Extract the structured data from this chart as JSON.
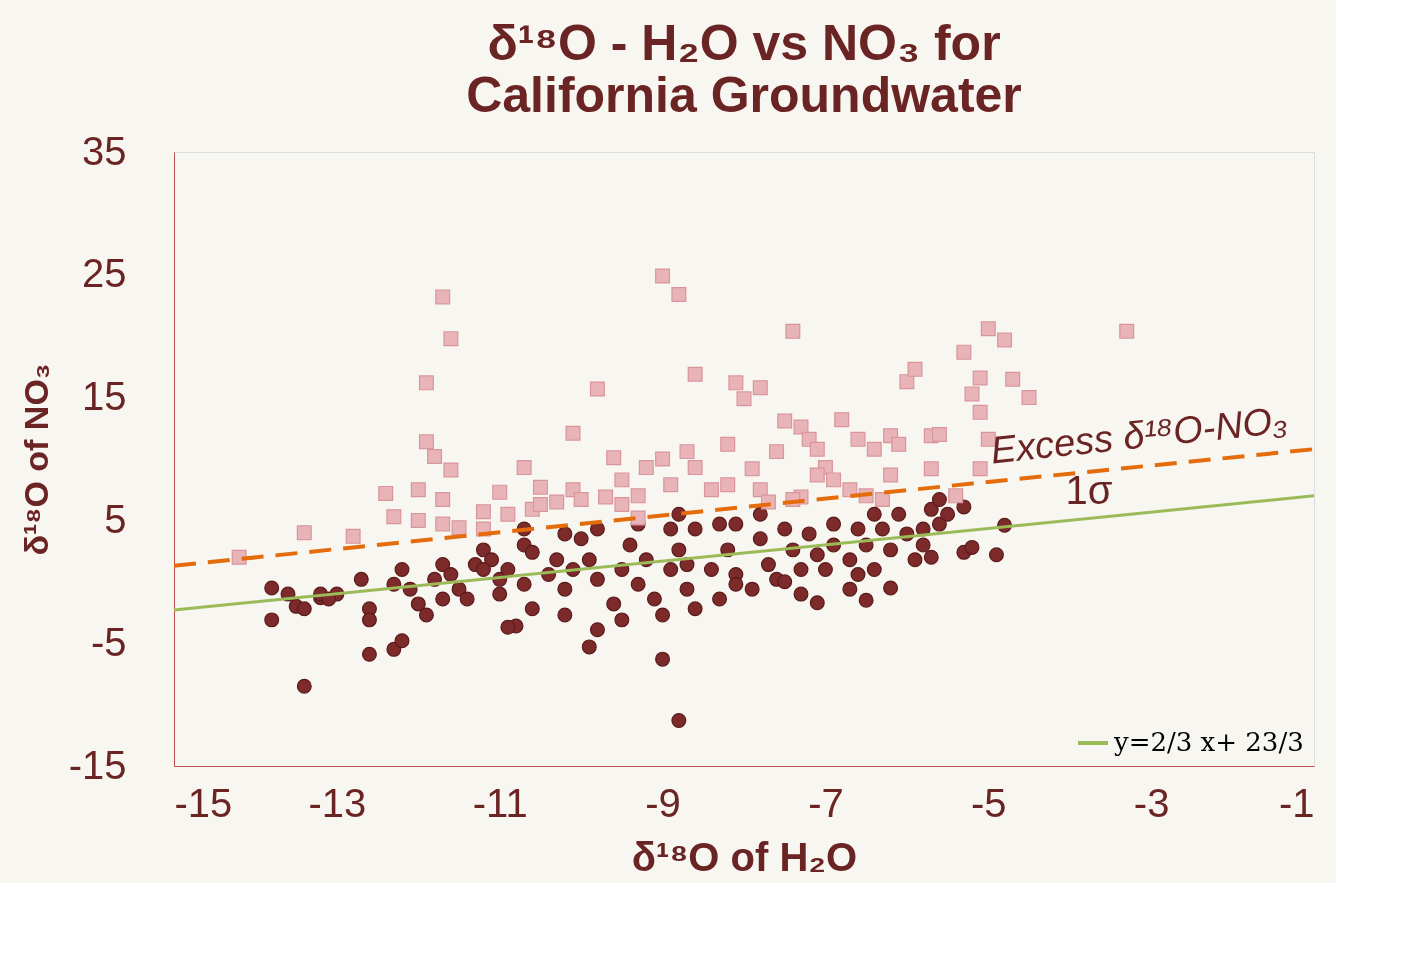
{
  "chart_data": {
    "type": "scatter",
    "title": "δ¹⁸O - H₂O vs NO₃ for California Groundwater",
    "xlabel": "δ¹⁸O of H₂O",
    "ylabel": "δ¹⁸O of NO₃",
    "xlim": [
      -15,
      -1
    ],
    "xticks": [
      -15,
      -13,
      -11,
      -9,
      -7,
      -5,
      -3,
      -1
    ],
    "ylim": [
      -15,
      35
    ],
    "yticks": [
      -15,
      -5,
      5,
      15,
      25,
      35
    ],
    "grid": false,
    "legend": "bottom right",
    "annotations": [
      "Excess δ¹⁸O-NO₃",
      "1σ"
    ],
    "series": [
      {
        "marker": "circle",
        "color": "#7d2a2a",
        "x": [
          -13.8,
          -13.8,
          -13.4,
          -12.6,
          -12.3,
          -12.2,
          -9.9,
          -9.0,
          -8.8,
          -7.1,
          -6.5,
          -6.2,
          -4.9,
          -4.8,
          -5.3,
          -5.2,
          -5.3,
          -5.7,
          -9.8,
          -10.8,
          -10.9,
          -13.5,
          -13.2,
          -13.0,
          -13.6,
          -13.4,
          -13.2,
          -13.1,
          -12.7,
          -12.6,
          -12.6,
          -12.3,
          -12.2,
          -12.1,
          -12.0,
          -11.9,
          -11.8,
          -11.7,
          -11.6,
          -11.5,
          -11.4,
          -11.3,
          -11.2,
          -11.1,
          -11.0,
          -11.0,
          -10.9,
          -10.7,
          -10.7,
          -10.6,
          -10.4,
          -10.3,
          -10.2,
          -10.2,
          -10.1,
          -10.0,
          -9.9,
          -9.8,
          -9.6,
          -9.5,
          -9.4,
          -9.3,
          -9.2,
          -9.1,
          -8.9,
          -8.9,
          -8.8,
          -8.7,
          -8.6,
          -8.4,
          -8.3,
          -8.2,
          -8.1,
          -8.1,
          -7.9,
          -7.8,
          -7.7,
          -7.6,
          -7.5,
          -7.4,
          -7.3,
          -7.2,
          -7.1,
          -7.0,
          -6.9,
          -6.9,
          -6.7,
          -6.6,
          -6.6,
          -6.5,
          -6.4,
          -6.3,
          -6.2,
          -6.1,
          -6.0,
          -5.9,
          -5.8,
          -5.7,
          -5.6,
          -5.6,
          -5.5,
          -5.8,
          -6.4,
          -6.7,
          -7.3,
          -7.8,
          -8.3,
          -8.8,
          -9.3,
          -9.8,
          -10.2,
          -10.7,
          -11.2,
          -11.7,
          -10.6,
          -9.5,
          -9.0,
          -8.6,
          -8.1,
          -7.5,
          -8.7
        ],
        "values": [
          -0.5,
          -3.1,
          -8.5,
          -5.9,
          -5.5,
          -4.8,
          -5.3,
          -6.3,
          -11.3,
          -1.7,
          -1.5,
          -0.5,
          2.2,
          4.6,
          2.4,
          2.8,
          6.1,
          2.0,
          -3.9,
          -3.6,
          -3.7,
          -2.0,
          -1.3,
          -1.0,
          -1.0,
          -2.2,
          -1.0,
          -1.4,
          0.2,
          -2.2,
          -3.1,
          -0.2,
          1.0,
          -0.6,
          -1.8,
          -2.7,
          0.2,
          1.4,
          0.6,
          -0.6,
          -1.4,
          1.4,
          2.6,
          1.8,
          0.2,
          -1.0,
          1.0,
          3.0,
          -0.2,
          -2.2,
          0.6,
          1.8,
          -0.6,
          -2.7,
          1.0,
          3.5,
          1.8,
          0.2,
          -1.8,
          1.0,
          3.0,
          -0.2,
          1.8,
          -1.4,
          4.3,
          1.0,
          2.6,
          -0.6,
          4.3,
          1.0,
          -1.4,
          2.6,
          4.7,
          0.6,
          -0.6,
          3.5,
          1.4,
          0.2,
          4.3,
          2.6,
          1.0,
          3.9,
          2.2,
          1.0,
          4.7,
          3.0,
          1.8,
          0.6,
          4.3,
          3.0,
          5.5,
          4.3,
          2.6,
          5.5,
          3.9,
          1.8,
          4.3,
          5.9,
          6.7,
          4.7,
          5.5,
          3.0,
          1.0,
          -0.6,
          -1.0,
          5.5,
          4.7,
          5.5,
          4.7,
          4.3,
          3.9,
          4.3,
          1.0,
          -1.4,
          2.4,
          -3.1,
          -2.7,
          -2.2,
          -0.2,
          0.0,
          1.4
        ]
      },
      {
        "marker": "square",
        "color": "#e9b4b8",
        "x": [
          -14.2,
          -13.4,
          -12.8,
          -12.3,
          -12.4,
          -12.0,
          -12.0,
          -11.9,
          -11.7,
          -11.6,
          -11.9,
          -11.8,
          -11.6,
          -11.7,
          -11.7,
          -11.5,
          -11.2,
          -11.0,
          -10.9,
          -10.7,
          -10.6,
          -10.5,
          -10.3,
          -10.1,
          -10.1,
          -10.0,
          -9.8,
          -9.6,
          -9.7,
          -9.5,
          -9.3,
          -9.3,
          -9.2,
          -9.0,
          -9.0,
          -8.8,
          -8.6,
          -8.7,
          -8.6,
          -8.4,
          -8.2,
          -8.1,
          -8.0,
          -7.8,
          -7.9,
          -7.8,
          -7.6,
          -7.5,
          -7.4,
          -7.3,
          -7.2,
          -7.1,
          -7.3,
          -7.0,
          -6.9,
          -6.7,
          -6.8,
          -6.6,
          -6.5,
          -6.3,
          -6.2,
          -6.0,
          -5.9,
          -5.7,
          -5.4,
          -5.7,
          -5.3,
          -5.1,
          -5.0,
          -5.1,
          -5.0,
          -4.8,
          -4.7,
          -4.5,
          -5.2,
          -5.1,
          -6.2,
          -6.1,
          -5.6,
          -3.3,
          -7.1,
          -7.4,
          -6.4,
          -8.2,
          -8.9,
          -10.5,
          -11.2,
          -7.7,
          -9.5
        ],
        "values": [
          2.0,
          4.0,
          3.7,
          5.3,
          7.2,
          7.5,
          5.0,
          16.2,
          23.2,
          19.8,
          11.4,
          10.2,
          9.1,
          6.7,
          4.7,
          4.4,
          5.7,
          7.3,
          5.5,
          9.3,
          5.9,
          6.3,
          6.5,
          12.1,
          7.5,
          6.7,
          15.7,
          10.1,
          6.9,
          6.3,
          7.0,
          5.2,
          9.3,
          10.0,
          24.9,
          23.4,
          16.9,
          10.6,
          9.3,
          7.5,
          11.2,
          16.2,
          14.9,
          15.8,
          9.2,
          7.5,
          10.6,
          13.1,
          20.4,
          12.6,
          11.6,
          10.8,
          6.9,
          9.3,
          8.3,
          7.5,
          13.2,
          11.6,
          7.0,
          6.7,
          11.9,
          16.3,
          17.3,
          11.9,
          7.0,
          9.2,
          18.7,
          13.8,
          11.6,
          9.2,
          20.6,
          19.7,
          16.5,
          15.0,
          15.3,
          16.6,
          8.7,
          11.2,
          12.0,
          20.4,
          8.7,
          6.7,
          10.8,
          7.9,
          7.9,
          7.7,
          4.3,
          6.5,
          8.3
        ]
      },
      {
        "type": "line",
        "line_style": "dashed",
        "color": "#e46c0a",
        "x": [
          -15,
          -5.2,
          -1
        ],
        "values": [
          1.3,
          8.0,
          10.8
        ]
      },
      {
        "type": "line",
        "line_style": "solid",
        "name": "y=2/3 x+ 23/3",
        "color": "#9bbb59",
        "x": [
          -15,
          -1
        ],
        "values": [
          -2.3,
          7.0
        ]
      }
    ]
  }
}
